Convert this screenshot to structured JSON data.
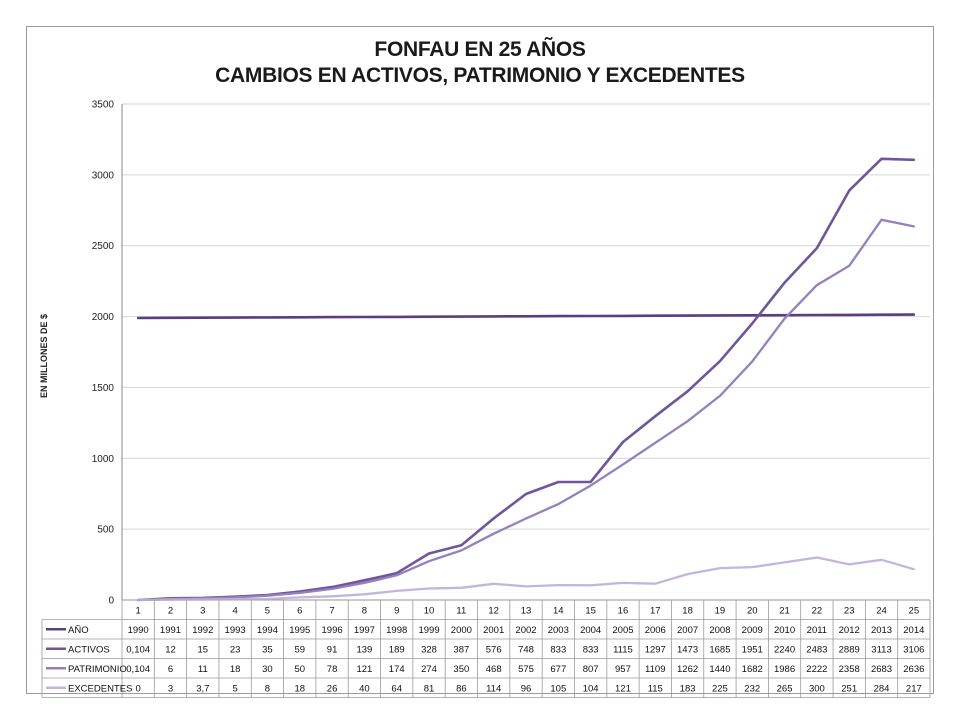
{
  "chart_data": {
    "type": "line",
    "title": "FONFAU EN 25 AÑOS",
    "subtitle": "CAMBIOS EN ACTIVOS, PATRIMONIO Y EXCEDENTES",
    "ylabel": "EN MILLONES DE $",
    "xlabel": "",
    "ylim": [
      0,
      3500
    ],
    "yticks": [
      0,
      500,
      1000,
      1500,
      2000,
      2500,
      3000,
      3500
    ],
    "grid": "horizontal",
    "legend": "data-table-below",
    "categories": [
      "1",
      "2",
      "3",
      "4",
      "5",
      "6",
      "7",
      "8",
      "9",
      "10",
      "11",
      "12",
      "13",
      "14",
      "15",
      "16",
      "17",
      "18",
      "19",
      "20",
      "21",
      "22",
      "23",
      "24",
      "25"
    ],
    "series": [
      {
        "name": "AÑO",
        "color": "#5c3d7e",
        "width": 2.6,
        "values": [
          1990,
          1991,
          1992,
          1993,
          1994,
          1995,
          1996,
          1997,
          1998,
          1999,
          2000,
          2001,
          2002,
          2003,
          2004,
          2005,
          2006,
          2007,
          2008,
          2009,
          2010,
          2011,
          2012,
          2013,
          2014
        ],
        "labels": [
          "1990",
          "1991",
          "1992",
          "1993",
          "1994",
          "1995",
          "1996",
          "1997",
          "1998",
          "1999",
          "2000",
          "2001",
          "2002",
          "2003",
          "2004",
          "2005",
          "2006",
          "2007",
          "2008",
          "2009",
          "2010",
          "2011",
          "2012",
          "2013",
          "2014"
        ]
      },
      {
        "name": "ACTIVOS",
        "color": "#71559a",
        "width": 2.6,
        "values": [
          0.104,
          12,
          15,
          23,
          35,
          59,
          91,
          139,
          189,
          328,
          387,
          576,
          748,
          833,
          833,
          1115,
          1297,
          1473,
          1685,
          1951,
          2240,
          2483,
          2889,
          3113,
          3106
        ],
        "labels": [
          "0,104",
          "12",
          "15",
          "23",
          "35",
          "59",
          "91",
          "139",
          "189",
          "328",
          "387",
          "576",
          "748",
          "833",
          "833",
          "1115",
          "1297",
          "1473",
          "1685",
          "1951",
          "2240",
          "2483",
          "2889",
          "3113",
          "3106"
        ]
      },
      {
        "name": "PATRIMONIO",
        "color": "#9580bd",
        "width": 2.3,
        "values": [
          0.104,
          6,
          11,
          18,
          30,
          50,
          78,
          121,
          174,
          274,
          350,
          468,
          575,
          677,
          807,
          957,
          1109,
          1262,
          1440,
          1682,
          1986,
          2222,
          2358,
          2683,
          2636
        ],
        "labels": [
          "0,104",
          "6",
          "11",
          "18",
          "30",
          "50",
          "78",
          "121",
          "174",
          "274",
          "350",
          "468",
          "575",
          "677",
          "807",
          "957",
          "1109",
          "1262",
          "1440",
          "1682",
          "1986",
          "2222",
          "2358",
          "2683",
          "2636"
        ]
      },
      {
        "name": "EXCEDENTES",
        "color": "#c3b6da",
        "width": 2.3,
        "values": [
          0,
          3,
          3.7,
          5,
          8,
          18,
          26,
          40,
          64,
          81,
          86,
          114,
          96,
          105,
          104,
          121,
          115,
          183,
          225,
          232,
          265,
          300,
          251,
          284,
          217
        ],
        "labels": [
          "0",
          "3",
          "3,7",
          "5",
          "8",
          "18",
          "26",
          "40",
          "64",
          "81",
          "86",
          "114",
          "96",
          "105",
          "104",
          "121",
          "115",
          "183",
          "225",
          "232",
          "265",
          "300",
          "251",
          "284",
          "217"
        ]
      }
    ]
  }
}
